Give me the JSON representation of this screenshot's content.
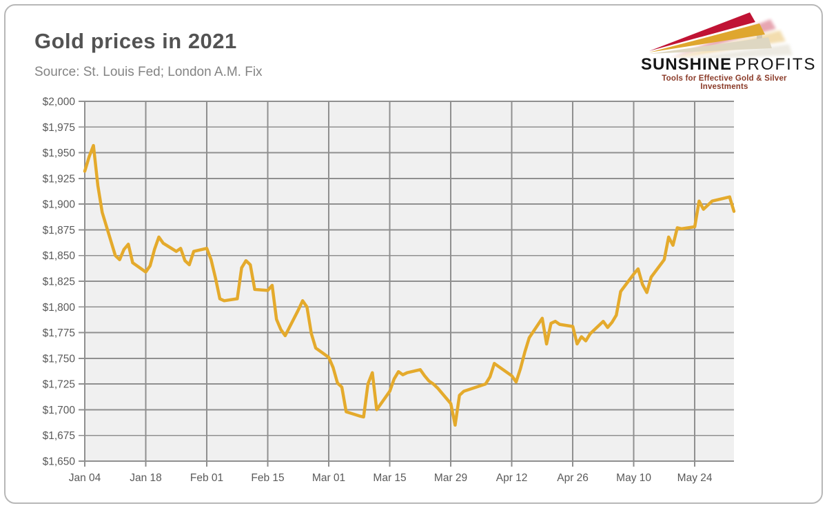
{
  "card": {
    "title": "Gold prices in 2021",
    "source": "Source: St. Louis Fed; London A.M. Fix"
  },
  "logo": {
    "brand_bold": "SUNSHINE",
    "brand_light": "PROFITS",
    "tagline": "Tools for Effective Gold & Silver Investments",
    "arrow_red": "#c01334",
    "arrow_gold": "#dfa62e",
    "arrow_cream": "#ded7c2"
  },
  "chart_data": {
    "type": "line",
    "title": "Gold prices in 2021",
    "source": "Source: St. Louis Fed; London A.M. Fix",
    "ylim": [
      1650,
      2000
    ],
    "y_tick_step": 25,
    "y_tick_labels": [
      "$1,650",
      "$1,675",
      "$1,700",
      "$1,725",
      "$1,750",
      "$1,775",
      "$1,800",
      "$1,825",
      "$1,850",
      "$1,875",
      "$1,900",
      "$1,925",
      "$1,950",
      "$1,975",
      "$2,000"
    ],
    "x_range": [
      "2021-01-04",
      "2021-06-02"
    ],
    "x_ticks": [
      {
        "date": "2021-01-04",
        "label": "Jan 04"
      },
      {
        "date": "2021-01-18",
        "label": "Jan 18"
      },
      {
        "date": "2021-02-01",
        "label": "Feb 01"
      },
      {
        "date": "2021-02-15",
        "label": "Feb 15"
      },
      {
        "date": "2021-03-01",
        "label": "Mar 01"
      },
      {
        "date": "2021-03-15",
        "label": "Mar 15"
      },
      {
        "date": "2021-03-29",
        "label": "Mar 29"
      },
      {
        "date": "2021-04-12",
        "label": "Apr 12"
      },
      {
        "date": "2021-04-26",
        "label": "Apr 26"
      },
      {
        "date": "2021-05-10",
        "label": "May 10"
      },
      {
        "date": "2021-05-24",
        "label": "May 24"
      }
    ],
    "grid": true,
    "legend": "none",
    "plot_bg": "#f0f0f0",
    "grid_color": "#8f8f8f",
    "line_color": "#e4aa2c",
    "points": [
      [
        "2021-01-04",
        1932
      ],
      [
        "2021-01-05",
        1946
      ],
      [
        "2021-01-06",
        1957
      ],
      [
        "2021-01-07",
        1918
      ],
      [
        "2021-01-08",
        1892
      ],
      [
        "2021-01-11",
        1850
      ],
      [
        "2021-01-12",
        1846
      ],
      [
        "2021-01-13",
        1856
      ],
      [
        "2021-01-14",
        1861
      ],
      [
        "2021-01-15",
        1843
      ],
      [
        "2021-01-18",
        1834
      ],
      [
        "2021-01-19",
        1840
      ],
      [
        "2021-01-20",
        1856
      ],
      [
        "2021-01-21",
        1868
      ],
      [
        "2021-01-22",
        1862
      ],
      [
        "2021-01-25",
        1854
      ],
      [
        "2021-01-26",
        1857
      ],
      [
        "2021-01-27",
        1845
      ],
      [
        "2021-01-28",
        1841
      ],
      [
        "2021-01-29",
        1854
      ],
      [
        "2021-02-01",
        1857
      ],
      [
        "2021-02-02",
        1846
      ],
      [
        "2021-02-03",
        1828
      ],
      [
        "2021-02-04",
        1808
      ],
      [
        "2021-02-05",
        1806
      ],
      [
        "2021-02-08",
        1808
      ],
      [
        "2021-02-09",
        1838
      ],
      [
        "2021-02-10",
        1845
      ],
      [
        "2021-02-11",
        1841
      ],
      [
        "2021-02-12",
        1817
      ],
      [
        "2021-02-15",
        1816
      ],
      [
        "2021-02-16",
        1821
      ],
      [
        "2021-02-17",
        1788
      ],
      [
        "2021-02-18",
        1778
      ],
      [
        "2021-02-19",
        1772
      ],
      [
        "2021-02-22",
        1797
      ],
      [
        "2021-02-23",
        1806
      ],
      [
        "2021-02-24",
        1800
      ],
      [
        "2021-02-25",
        1774
      ],
      [
        "2021-02-26",
        1760
      ],
      [
        "2021-03-01",
        1751
      ],
      [
        "2021-03-02",
        1741
      ],
      [
        "2021-03-03",
        1726
      ],
      [
        "2021-03-04",
        1722
      ],
      [
        "2021-03-05",
        1698
      ],
      [
        "2021-03-08",
        1694
      ],
      [
        "2021-03-09",
        1693
      ],
      [
        "2021-03-10",
        1725
      ],
      [
        "2021-03-11",
        1736
      ],
      [
        "2021-03-12",
        1700
      ],
      [
        "2021-03-15",
        1718
      ],
      [
        "2021-03-16",
        1730
      ],
      [
        "2021-03-17",
        1737
      ],
      [
        "2021-03-18",
        1734
      ],
      [
        "2021-03-19",
        1736
      ],
      [
        "2021-03-22",
        1739
      ],
      [
        "2021-03-23",
        1733
      ],
      [
        "2021-03-24",
        1728
      ],
      [
        "2021-03-25",
        1725
      ],
      [
        "2021-03-26",
        1721
      ],
      [
        "2021-03-29",
        1706
      ],
      [
        "2021-03-30",
        1685
      ],
      [
        "2021-03-31",
        1714
      ],
      [
        "2021-04-01",
        1718
      ],
      [
        "2021-04-06",
        1725
      ],
      [
        "2021-04-07",
        1732
      ],
      [
        "2021-04-08",
        1745
      ],
      [
        "2021-04-09",
        1742
      ],
      [
        "2021-04-12",
        1733
      ],
      [
        "2021-04-13",
        1727
      ],
      [
        "2021-04-14",
        1740
      ],
      [
        "2021-04-15",
        1756
      ],
      [
        "2021-04-16",
        1770
      ],
      [
        "2021-04-19",
        1789
      ],
      [
        "2021-04-20",
        1764
      ],
      [
        "2021-04-21",
        1784
      ],
      [
        "2021-04-22",
        1786
      ],
      [
        "2021-04-23",
        1783
      ],
      [
        "2021-04-26",
        1781
      ],
      [
        "2021-04-27",
        1764
      ],
      [
        "2021-04-28",
        1771
      ],
      [
        "2021-04-29",
        1767
      ],
      [
        "2021-04-30",
        1774
      ],
      [
        "2021-05-03",
        1786
      ],
      [
        "2021-05-04",
        1780
      ],
      [
        "2021-05-05",
        1785
      ],
      [
        "2021-05-06",
        1792
      ],
      [
        "2021-05-07",
        1815
      ],
      [
        "2021-05-10",
        1832
      ],
      [
        "2021-05-11",
        1837
      ],
      [
        "2021-05-12",
        1822
      ],
      [
        "2021-05-13",
        1814
      ],
      [
        "2021-05-14",
        1829
      ],
      [
        "2021-05-17",
        1846
      ],
      [
        "2021-05-18",
        1868
      ],
      [
        "2021-05-19",
        1860
      ],
      [
        "2021-05-20",
        1877
      ],
      [
        "2021-05-21",
        1876
      ],
      [
        "2021-05-24",
        1878
      ],
      [
        "2021-05-25",
        1903
      ],
      [
        "2021-05-26",
        1895
      ],
      [
        "2021-05-27",
        1899
      ],
      [
        "2021-05-28",
        1903
      ],
      [
        "2021-06-01",
        1907
      ],
      [
        "2021-06-02",
        1893
      ]
    ]
  }
}
